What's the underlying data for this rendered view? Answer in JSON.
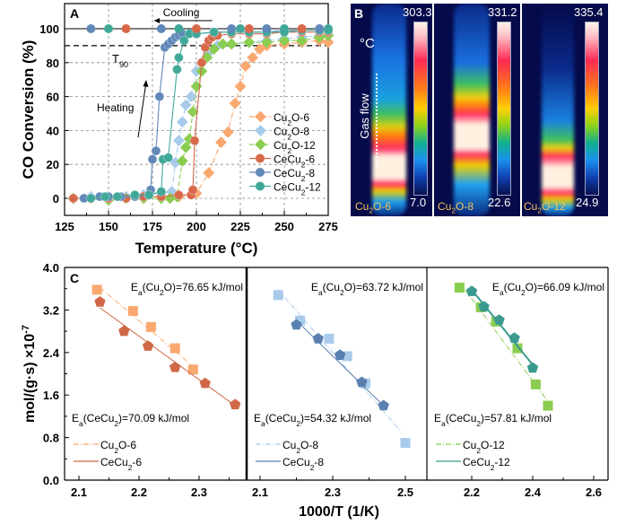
{
  "chart_data": [
    {
      "panel": "A",
      "type": "line",
      "xlabel": "Temperature (°C)",
      "ylabel": "CO Conversion (%)",
      "xlim": [
        125,
        275
      ],
      "ylim": [
        -10,
        115
      ],
      "xticks": [
        125,
        150,
        175,
        200,
        225,
        250,
        275
      ],
      "yticks": [
        0,
        20,
        40,
        60,
        80,
        100
      ],
      "grid": true,
      "legend_position": "center-right",
      "annotations": [
        "Cooling",
        "Heating",
        "T90"
      ],
      "reference_lines": [
        {
          "y": 100,
          "style": "solid"
        },
        {
          "y": 90,
          "style": "dashed",
          "label": "T90"
        }
      ],
      "series": [
        {
          "name": "Cu2O-6",
          "marker": "diamond",
          "color": "#f9a870",
          "dash": "dashdot",
          "x": [
            130,
            140,
            150,
            160,
            170,
            180,
            190,
            200,
            207,
            214,
            218,
            222,
            225,
            228,
            232,
            236,
            240,
            250,
            260,
            270,
            275
          ],
          "y": [
            0,
            0,
            0,
            0.5,
            1,
            1,
            1,
            3,
            15,
            33,
            39,
            56,
            66,
            78,
            83,
            88,
            90,
            91,
            92,
            93,
            92
          ]
        },
        {
          "name": "Cu2O-8",
          "marker": "diamond",
          "color": "#a8cbeb",
          "dash": "dashdot",
          "x": [
            130,
            140,
            150,
            160,
            170,
            180,
            186,
            188,
            190,
            192,
            194,
            197,
            200,
            203,
            207,
            212,
            220,
            230,
            240,
            250,
            260,
            270,
            275
          ],
          "y": [
            0,
            1,
            1,
            1,
            2,
            3,
            4,
            21,
            34,
            45,
            55,
            60,
            75,
            80,
            86,
            90,
            91,
            92,
            93,
            94,
            95,
            96,
            96
          ]
        },
        {
          "name": "Cu2O-12",
          "marker": "diamond",
          "color": "#8acd50",
          "dash": "dash",
          "x": [
            130,
            150,
            160,
            170,
            180,
            185,
            189,
            192,
            194,
            196,
            198,
            200,
            203,
            206,
            210,
            215,
            220,
            230,
            240,
            250,
            260,
            270,
            275
          ],
          "y": [
            0,
            -1,
            0,
            0,
            0,
            0,
            1,
            22,
            30,
            35,
            51,
            66,
            75,
            83,
            88,
            91,
            91,
            92,
            92,
            93,
            93,
            95,
            96
          ]
        },
        {
          "name": "CeCu2-6",
          "marker": "sphere",
          "color": "#d8684a",
          "dash": "solid",
          "x": [
            130,
            140,
            150,
            160,
            170,
            180,
            190,
            197,
            198,
            199,
            203,
            205,
            207,
            209,
            212,
            220,
            230,
            240,
            250,
            260,
            270,
            275
          ],
          "y": [
            0,
            0,
            0,
            0,
            1,
            1,
            2,
            2,
            5,
            34,
            80,
            89,
            93,
            95,
            96,
            97,
            97,
            97,
            98,
            98,
            98,
            98
          ]
        },
        {
          "name": "CeCu2-8",
          "marker": "sphere",
          "color": "#6088b8",
          "dash": "solid",
          "x": [
            136,
            145,
            150,
            157,
            165,
            173,
            174,
            175,
            177,
            179,
            182,
            184,
            186,
            188,
            190,
            192,
            200,
            210,
            220,
            230,
            240,
            250,
            260,
            270,
            275
          ],
          "y": [
            0,
            1,
            1,
            1,
            1,
            2,
            5,
            23,
            28,
            60,
            89,
            91,
            93,
            95,
            96,
            97,
            97,
            98,
            98,
            98,
            98,
            99,
            99,
            99,
            99
          ]
        },
        {
          "name": "CeCu2-12",
          "marker": "sphere",
          "color": "#40a898",
          "dash": "solid",
          "x": [
            140,
            148,
            155,
            165,
            173,
            180,
            181,
            184,
            189,
            190,
            193,
            196,
            200,
            210,
            220,
            230,
            240,
            250,
            260,
            270,
            275
          ],
          "y": [
            0,
            1,
            1,
            2,
            2,
            4,
            23,
            24,
            76,
            83,
            93,
            97,
            97,
            98,
            98,
            98,
            98,
            98,
            99,
            99,
            99
          ]
        },
        {
          "name": "Cooling",
          "points": [
            [
              140,
              100
            ],
            [
              150,
              100
            ],
            [
              160,
              100
            ],
            [
              180,
              100
            ],
            [
              190,
              100
            ],
            [
              200,
              100
            ],
            [
              220,
              100
            ],
            [
              225,
              100
            ],
            [
              230,
              100
            ],
            [
              240,
              100
            ],
            [
              250,
              100
            ],
            [
              260,
              100
            ],
            [
              270,
              100
            ],
            [
              275,
              100
            ]
          ]
        }
      ],
      "legend": [
        "Cu2O-6",
        "Cu2O-8",
        "Cu2O-12",
        "CeCu2-6",
        "CeCu2-8",
        "CeCu2-12"
      ]
    },
    {
      "panel": "B",
      "type": "heatmap",
      "description": "Infrared thermal images",
      "unit_label": "°C",
      "flow_label": "Gas flow",
      "images": [
        {
          "sample": "Cu2O-6",
          "max": "303.3",
          "min": "7.0"
        },
        {
          "sample": "Cu2O-8",
          "max": "331.2",
          "min": "22.6"
        },
        {
          "sample": "Cu2O-12",
          "max": "335.4",
          "min": "24.9"
        }
      ]
    },
    {
      "panel": "C",
      "type": "scatter",
      "xlabel": "1000/T (1/K)",
      "ylabel": "mol/(g·s) ×10⁻⁷",
      "ylim": [
        0,
        4.0
      ],
      "yticks": [
        0.0,
        0.8,
        1.6,
        2.4,
        3.2,
        4.0
      ],
      "subplots": [
        {
          "xlim": [
            2.08,
            2.39
          ],
          "xticks": [
            2.1,
            2.2,
            2.3
          ],
          "ea_top": "Ea(Cu2O)=76.65 kJ/mol",
          "ea_bottom": "Ea(CeCu2)=70.09 kJ/mol",
          "series": [
            {
              "name": "Cu2O-6",
              "marker": "square",
              "color": "#f9a870",
              "dash": "dashdot",
              "x": [
                2.13,
                2.19,
                2.22,
                2.26,
                2.29
              ],
              "y": [
                3.58,
                3.18,
                2.88,
                2.48,
                2.08
              ],
              "fit": [
                [
                  2.135,
                  3.62
                ],
                [
                  2.29,
                  2.14
                ]
              ]
            },
            {
              "name": "CeCu2-6",
              "marker": "pentagon",
              "color": "#d06848",
              "dash": "solid",
              "x": [
                2.135,
                2.175,
                2.215,
                2.26,
                2.31,
                2.36
              ],
              "y": [
                3.35,
                2.8,
                2.52,
                2.12,
                1.82,
                1.42
              ],
              "fit": [
                [
                  2.135,
                  3.24
                ],
                [
                  2.36,
                  1.4
                ]
              ]
            }
          ]
        },
        {
          "xlim": [
            2.05,
            2.58
          ],
          "xticks": [
            2.1,
            2.3,
            2.5
          ],
          "ea_top": "Ea(Cu2O)=63.72 kJ/mol",
          "ea_bottom": "Ea(CeCu2)=54.32 kJ/mol",
          "series": [
            {
              "name": "Cu2O-8",
              "marker": "square",
              "color": "#a8cbeb",
              "dash": "dashdot",
              "x": [
                2.15,
                2.21,
                2.29,
                2.34,
                2.39,
                2.5
              ],
              "y": [
                3.48,
                3.0,
                2.66,
                2.33,
                1.82,
                0.7
              ],
              "fit": [
                [
                  2.15,
                  3.58
                ],
                [
                  2.49,
                  0.9
                ]
              ]
            },
            {
              "name": "CeCu2-8",
              "marker": "pentagon",
              "color": "#5a80b0",
              "dash": "solid",
              "x": [
                2.2,
                2.26,
                2.32,
                2.38,
                2.44
              ],
              "y": [
                2.92,
                2.66,
                2.35,
                1.84,
                1.4
              ],
              "fit": [
                [
                  2.2,
                  3.0
                ],
                [
                  2.44,
                  1.4
                ]
              ]
            }
          ]
        },
        {
          "xlim": [
            2.06,
            2.62
          ],
          "xticks": [
            2.2,
            2.4,
            2.6
          ],
          "ea_top": "Ea(Cu2O)=66.09 kJ/mol",
          "ea_bottom": "Ea(CeCu2)=57.81 kJ/mol",
          "series": [
            {
              "name": "Cu2O-12",
              "marker": "square",
              "color": "#8acd50",
              "dash": "dashdot",
              "x": [
                2.16,
                2.23,
                2.28,
                2.35,
                2.41,
                2.45
              ],
              "y": [
                3.62,
                3.25,
                2.98,
                2.48,
                1.8,
                1.4
              ],
              "fit": [
                [
                  2.16,
                  3.72
                ],
                [
                  2.45,
                  1.48
                ]
              ]
            },
            {
              "name": "CeCu2-12",
              "marker": "pentagon",
              "color": "#3a9a90",
              "dash": "solid",
              "x": [
                2.2,
                2.24,
                2.29,
                2.34,
                2.4
              ],
              "y": [
                3.55,
                3.26,
                3.01,
                2.67,
                2.11
              ],
              "fit": [
                [
                  2.2,
                  3.58
                ],
                [
                  2.41,
                  2.1
                ]
              ]
            }
          ]
        }
      ]
    }
  ],
  "labels": {
    "panel_a": "A",
    "panel_b": "B",
    "panel_c": "C",
    "cooling": "Cooling",
    "heating": "Heating",
    "t90": "T",
    "t90_sub": "90"
  }
}
